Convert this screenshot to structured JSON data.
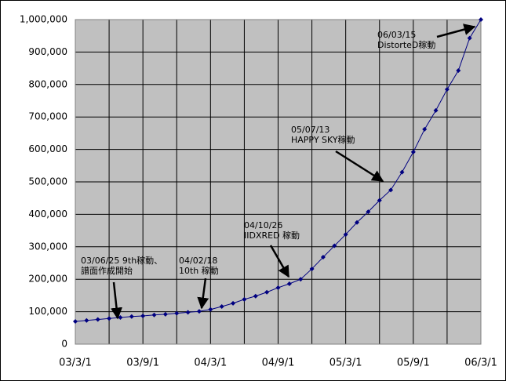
{
  "chart_data": {
    "type": "line",
    "x": [
      "03/3/1",
      "03/4/1",
      "03/5/1",
      "03/6/1",
      "03/7/1",
      "03/8/1",
      "03/9/1",
      "03/10/1",
      "03/11/1",
      "03/12/1",
      "04/1/1",
      "04/2/1",
      "04/3/1",
      "04/4/1",
      "04/5/1",
      "04/6/1",
      "04/7/1",
      "04/8/1",
      "04/9/1",
      "04/10/1",
      "04/11/1",
      "04/12/1",
      "05/1/1",
      "05/2/1",
      "05/3/1",
      "05/4/1",
      "05/5/1",
      "05/6/1",
      "05/7/1",
      "05/8/1",
      "05/9/1",
      "05/10/1",
      "05/11/1",
      "05/12/1",
      "06/1/1",
      "06/2/1",
      "06/3/1"
    ],
    "series": [
      {
        "name": null,
        "color": "#000080",
        "values": [
          70000,
          73000,
          76000,
          79000,
          82000,
          85000,
          87000,
          90000,
          92000,
          95000,
          98000,
          101000,
          107000,
          116000,
          126000,
          138000,
          148000,
          160000,
          174000,
          186000,
          200000,
          232000,
          268000,
          303000,
          338000,
          375000,
          408000,
          443000,
          475000,
          530000,
          592000,
          662000,
          720000,
          785000,
          843000,
          943000,
          1000000
        ]
      }
    ],
    "xlim": [
      "03/3/1",
      "06/3/1"
    ],
    "xticks": [
      "03/3/1",
      "03/9/1",
      "04/3/1",
      "04/9/1",
      "05/3/1",
      "05/9/1",
      "06/3/1"
    ],
    "ylim": [
      0,
      1000000
    ],
    "yticks": [
      0,
      {
        "value": 100000,
        "label": "100,000"
      },
      {
        "value": 200000,
        "label": "200,000"
      },
      {
        "value": 300000,
        "label": "300,000"
      },
      {
        "value": 400000,
        "label": "400,000"
      },
      {
        "value": 500000,
        "label": "500,000"
      },
      {
        "value": 600000,
        "label": "600,000"
      },
      {
        "value": 700000,
        "label": "700,000"
      },
      {
        "value": 800000,
        "label": "800,000"
      },
      {
        "value": 900000,
        "label": "900,000"
      },
      {
        "value": 1000000,
        "label": "1,000,000"
      }
    ],
    "grid": true,
    "annotations": [
      {
        "text": [
          "03/06/25 9th稼動、",
          "譜面作成開始"
        ]
      },
      {
        "text": [
          "04/02/18",
          "10th 稼動"
        ]
      },
      {
        "text": [
          "04/10/26",
          "IIDXRED 稼動"
        ]
      },
      {
        "text": [
          "05/07/13",
          "HAPPY SKY稼動"
        ]
      },
      {
        "text": [
          "06/03/15",
          "DistorteD稼動"
        ]
      }
    ]
  }
}
